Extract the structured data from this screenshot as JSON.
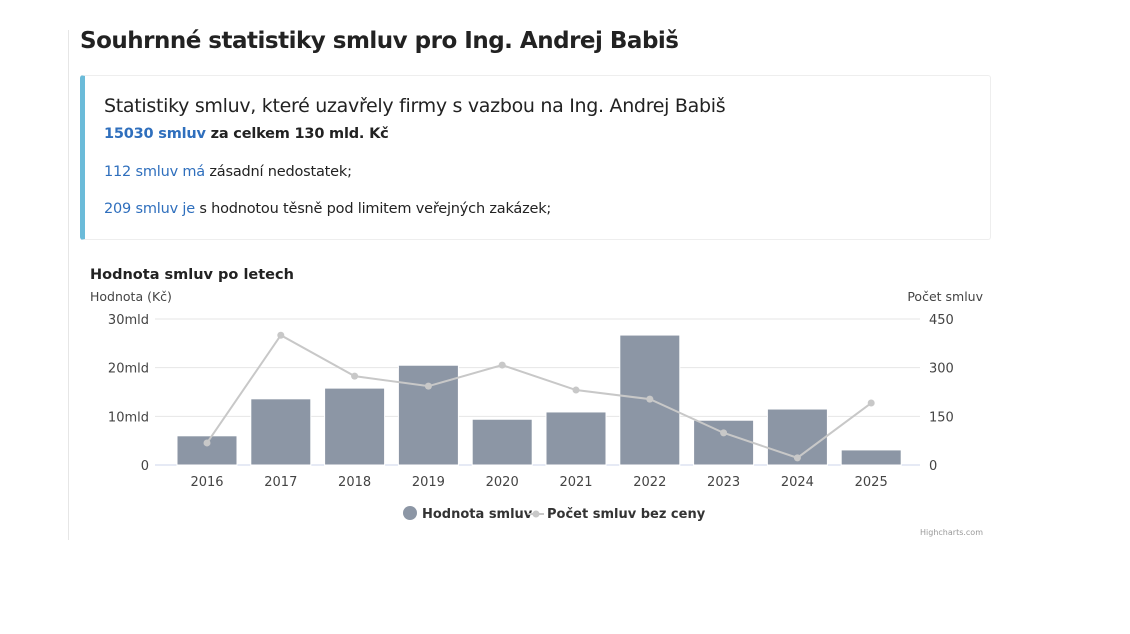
{
  "page_title": "Souhrnné statistiky smluv pro Ing. Andrej Babiš",
  "summary": {
    "title": "Statistiky smluv, které uzavřely firmy s vazbou na Ing. Andrej Babiš",
    "total_link": "15030 smluv",
    "total_text": " za celkem 130 mld. Kč",
    "issues_link": "112 smluv má",
    "issues_text": " zásadní nedostatek;",
    "limit_link": "209 smluv je",
    "limit_text": " s hodnotou těsně pod limitem veřejných zakázek;"
  },
  "colors": {
    "accent": "#6bbbd9",
    "link": "#2f6fbd",
    "bar": "#8c96a5",
    "line": "#c8c8c8"
  },
  "chart_data": {
    "type": "bar+line",
    "title": "Hodnota smluv po letech",
    "ylabel_left": "Hodnota (Kč)",
    "ylabel_right": "Počet smluv",
    "categories": [
      "2016",
      "2017",
      "2018",
      "2019",
      "2020",
      "2021",
      "2022",
      "2023",
      "2024",
      "2025"
    ],
    "yticks_left": [
      "0",
      "10mld",
      "20mld",
      "30mld"
    ],
    "yticks_right": [
      "0",
      "150",
      "300",
      "450"
    ],
    "ylim_left": [
      0,
      30
    ],
    "ylim_right": [
      0,
      450
    ],
    "grid": true,
    "legend_position": "bottom",
    "series": [
      {
        "name": "Hodnota smluv",
        "type": "bar",
        "axis": "left",
        "unit": "mld Kč",
        "values": [
          6.0,
          13.6,
          15.8,
          20.5,
          9.4,
          10.9,
          26.7,
          9.2,
          11.5,
          3.1
        ]
      },
      {
        "name": "Počet smluv bez ceny",
        "type": "line",
        "axis": "right",
        "values": [
          68,
          400,
          274,
          243,
          308,
          231,
          203,
          99,
          22,
          191
        ]
      }
    ],
    "credits": "Highcharts.com"
  }
}
